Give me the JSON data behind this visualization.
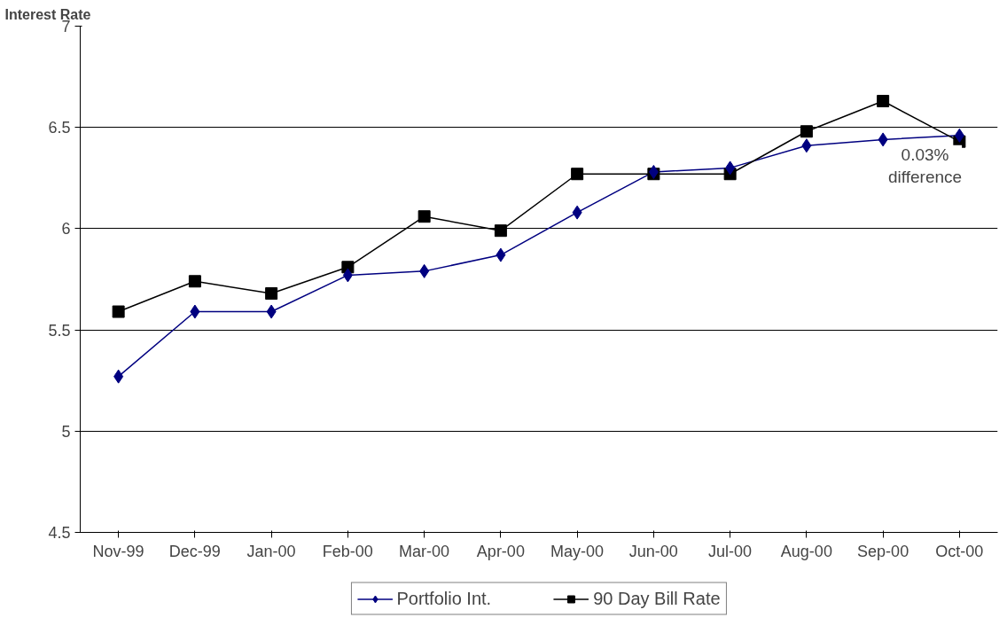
{
  "chart_data": {
    "type": "line",
    "ylabel": "Interest Rate",
    "categories": [
      "Nov-99",
      "Dec-99",
      "Jan-00",
      "Feb-00",
      "Mar-00",
      "Apr-00",
      "May-00",
      "Jun-00",
      "Jul-00",
      "Aug-00",
      "Sep-00",
      "Oct-00"
    ],
    "series": [
      {
        "name": "Portfolio Int.",
        "color": "#000080",
        "marker": "diamond",
        "values": [
          5.27,
          5.59,
          5.59,
          5.77,
          5.79,
          5.87,
          6.08,
          6.28,
          6.3,
          6.41,
          6.44,
          6.46
        ]
      },
      {
        "name": "90 Day Bill Rate",
        "color": "#000000",
        "marker": "square",
        "values": [
          5.59,
          5.74,
          5.68,
          5.81,
          6.06,
          5.99,
          6.27,
          6.27,
          6.27,
          6.48,
          6.63,
          6.43
        ]
      }
    ],
    "ylim": [
      4.5,
      7
    ],
    "yticks": [
      4.5,
      5,
      5.5,
      6,
      6.5,
      7
    ],
    "grid": "y",
    "legend": "bottom",
    "annotations": [
      "0.03%\ndifference"
    ]
  }
}
